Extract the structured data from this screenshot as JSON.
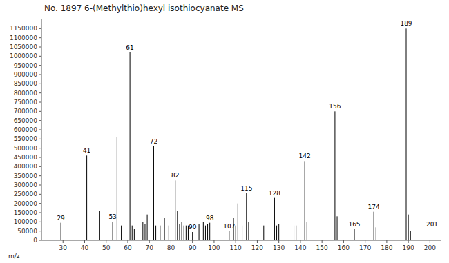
{
  "chart_data": {
    "type": "bar",
    "title": "No. 1897 6-(Methylthio)hexyl isothiocyanate MS",
    "x_label": "m/z",
    "color": "#000000",
    "grid": false,
    "x": [
      29,
      41,
      47,
      53,
      55,
      57,
      61,
      62,
      63,
      67,
      68,
      69,
      72,
      73,
      75,
      77,
      79,
      82,
      83,
      84,
      85,
      86,
      87,
      88,
      90,
      93,
      95,
      96,
      97,
      98,
      107,
      109,
      110,
      111,
      113,
      115,
      116,
      123,
      128,
      129,
      130,
      137,
      138,
      142,
      143,
      156,
      157,
      165,
      174,
      175,
      189,
      190,
      191,
      201
    ],
    "values": [
      95000,
      460000,
      160000,
      100000,
      560000,
      80000,
      1020000,
      80000,
      60000,
      100000,
      90000,
      140000,
      510000,
      80000,
      80000,
      120000,
      80000,
      325000,
      160000,
      90000,
      100000,
      80000,
      80000,
      80000,
      45000,
      90000,
      100000,
      80000,
      90000,
      95000,
      50000,
      120000,
      80000,
      200000,
      80000,
      255000,
      100000,
      80000,
      230000,
      80000,
      90000,
      80000,
      80000,
      430000,
      100000,
      700000,
      130000,
      60000,
      155000,
      70000,
      1150000,
      140000,
      50000,
      60000
    ],
    "annotations": [
      {
        "x": 29,
        "y": 95000,
        "text": "29"
      },
      {
        "x": 41,
        "y": 460000,
        "text": "41"
      },
      {
        "x": 53,
        "y": 100000,
        "text": "53"
      },
      {
        "x": 61,
        "y": 1020000,
        "text": "61"
      },
      {
        "x": 72,
        "y": 510000,
        "text": "72"
      },
      {
        "x": 82,
        "y": 325000,
        "text": "82"
      },
      {
        "x": 90,
        "y": 45000,
        "text": "90"
      },
      {
        "x": 98,
        "y": 95000,
        "text": "98"
      },
      {
        "x": 107,
        "y": 50000,
        "text": "107"
      },
      {
        "x": 115,
        "y": 255000,
        "text": "115"
      },
      {
        "x": 128,
        "y": 230000,
        "text": "128"
      },
      {
        "x": 142,
        "y": 430000,
        "text": "142"
      },
      {
        "x": 156,
        "y": 700000,
        "text": "156"
      },
      {
        "x": 165,
        "y": 60000,
        "text": "165"
      },
      {
        "x": 174,
        "y": 155000,
        "text": "174"
      },
      {
        "x": 189,
        "y": 1150000,
        "text": "189"
      },
      {
        "x": 201,
        "y": 60000,
        "text": "201"
      }
    ],
    "xlim": [
      20,
      205
    ],
    "ylim": [
      0,
      1200000
    ],
    "xticks": [
      30,
      40,
      50,
      60,
      70,
      80,
      90,
      100,
      110,
      120,
      130,
      140,
      150,
      160,
      170,
      180,
      190,
      200
    ],
    "yticks": [
      0,
      50000,
      100000,
      150000,
      200000,
      250000,
      300000,
      350000,
      400000,
      450000,
      500000,
      550000,
      600000,
      650000,
      700000,
      750000,
      800000,
      850000,
      900000,
      950000,
      1000000,
      1050000,
      1100000,
      1150000
    ]
  }
}
